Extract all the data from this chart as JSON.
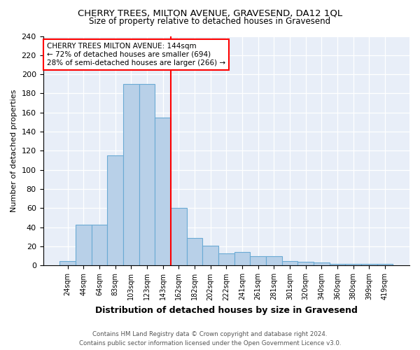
{
  "title": "CHERRY TREES, MILTON AVENUE, GRAVESEND, DA12 1QL",
  "subtitle": "Size of property relative to detached houses in Gravesend",
  "xlabel": "Distribution of detached houses by size in Gravesend",
  "ylabel": "Number of detached properties",
  "categories": [
    "24sqm",
    "44sqm",
    "64sqm",
    "83sqm",
    "103sqm",
    "123sqm",
    "143sqm",
    "162sqm",
    "182sqm",
    "202sqm",
    "222sqm",
    "241sqm",
    "261sqm",
    "281sqm",
    "301sqm",
    "320sqm",
    "340sqm",
    "360sqm",
    "380sqm",
    "399sqm",
    "419sqm"
  ],
  "values": [
    5,
    43,
    43,
    115,
    190,
    190,
    155,
    60,
    29,
    21,
    13,
    14,
    10,
    10,
    5,
    4,
    3,
    2,
    2,
    2,
    2
  ],
  "bar_color": "#b8d0e8",
  "bar_edge_color": "#6aaad4",
  "reference_line_x": 6.5,
  "reference_line_color": "red",
  "annotation_text": "CHERRY TREES MILTON AVENUE: 144sqm\n← 72% of detached houses are smaller (694)\n28% of semi-detached houses are larger (266) →",
  "annotation_box_color": "white",
  "annotation_box_edge": "red",
  "ylim": [
    0,
    240
  ],
  "yticks": [
    0,
    20,
    40,
    60,
    80,
    100,
    120,
    140,
    160,
    180,
    200,
    220,
    240
  ],
  "footer1": "Contains HM Land Registry data © Crown copyright and database right 2024.",
  "footer2": "Contains public sector information licensed under the Open Government Licence v3.0.",
  "bg_color": "#ffffff",
  "plot_bg_color": "#e8eef8"
}
